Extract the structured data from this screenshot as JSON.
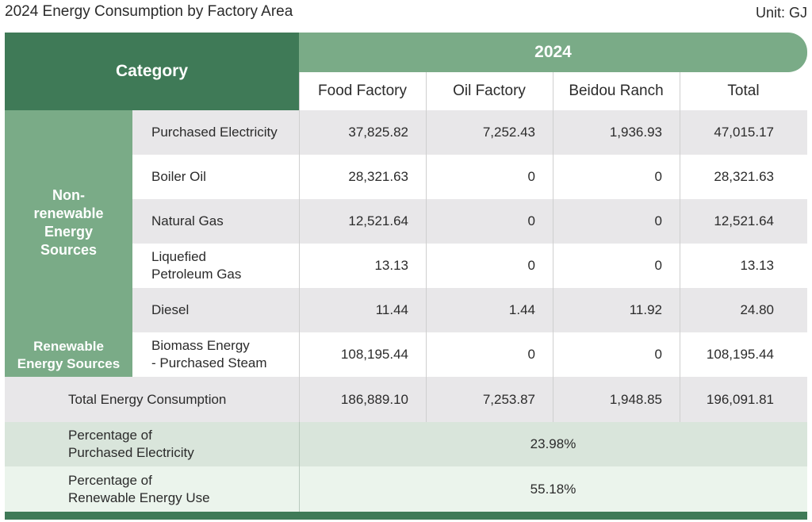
{
  "title": "2024 Energy Consumption by Factory Area",
  "unit": "Unit: GJ",
  "header": {
    "category": "Category",
    "year": "2024",
    "columns": [
      "Food Factory",
      "Oil Factory",
      "Beidou Ranch",
      "Total"
    ]
  },
  "groups": {
    "nonrenewable": "Non-\nrenewable\nEnergy\nSources",
    "renewable": "Renewable\nEnergy Sources"
  },
  "rows": [
    {
      "label": "Purchased Electricity",
      "values": [
        "37,825.82",
        "7,252.43",
        "1,936.93",
        "47,015.17"
      ]
    },
    {
      "label": "Boiler Oil",
      "values": [
        "28,321.63",
        "0",
        "0",
        "28,321.63"
      ]
    },
    {
      "label": "Natural Gas",
      "values": [
        "12,521.64",
        "0",
        "0",
        "12,521.64"
      ]
    },
    {
      "label": "Liquefied\nPetroleum Gas",
      "values": [
        "13.13",
        "0",
        "0",
        "13.13"
      ]
    },
    {
      "label": "Diesel",
      "values": [
        "11.44",
        "1.44",
        "11.92",
        "24.80"
      ]
    },
    {
      "label": "Biomass Energy\n- Purchased Steam",
      "values": [
        "108,195.44",
        "0",
        "0",
        "108,195.44"
      ]
    }
  ],
  "total_row": {
    "label": "Total Energy Consumption",
    "values": [
      "186,889.10",
      "7,253.87",
      "1,948.85",
      "196,091.81"
    ]
  },
  "percent_rows": [
    {
      "label": "Percentage of\nPurchased Electricity",
      "value": "23.98%"
    },
    {
      "label": "Percentage of\nRenewable Energy Use",
      "value": "55.18%"
    }
  ],
  "colors": {
    "dark_green": "#3f7a57",
    "mid_green": "#7aab87",
    "grey_row": "#e8e7e9",
    "pct1": "#d9e5db",
    "pct2": "#ebf4ec"
  },
  "chart_data": {
    "type": "table",
    "title": "2024 Energy Consumption by Factory Area",
    "unit": "GJ",
    "columns": [
      "Food Factory",
      "Oil Factory",
      "Beidou Ranch",
      "Total"
    ],
    "series": [
      {
        "name": "Purchased Electricity",
        "group": "Non-renewable Energy Sources",
        "values": [
          37825.82,
          7252.43,
          1936.93,
          47015.17
        ]
      },
      {
        "name": "Boiler Oil",
        "group": "Non-renewable Energy Sources",
        "values": [
          28321.63,
          0,
          0,
          28321.63
        ]
      },
      {
        "name": "Natural Gas",
        "group": "Non-renewable Energy Sources",
        "values": [
          12521.64,
          0,
          0,
          12521.64
        ]
      },
      {
        "name": "Liquefied Petroleum Gas",
        "group": "Non-renewable Energy Sources",
        "values": [
          13.13,
          0,
          0,
          13.13
        ]
      },
      {
        "name": "Diesel",
        "group": "Non-renewable Energy Sources",
        "values": [
          11.44,
          1.44,
          11.92,
          24.8
        ]
      },
      {
        "name": "Biomass Energy - Purchased Steam",
        "group": "Renewable Energy Sources",
        "values": [
          108195.44,
          0,
          0,
          108195.44
        ]
      },
      {
        "name": "Total Energy Consumption",
        "values": [
          186889.1,
          7253.87,
          1948.85,
          196091.81
        ]
      }
    ],
    "percentages": [
      {
        "name": "Percentage of Purchased Electricity",
        "value": 23.98
      },
      {
        "name": "Percentage of Renewable Energy Use",
        "value": 55.18
      }
    ]
  }
}
